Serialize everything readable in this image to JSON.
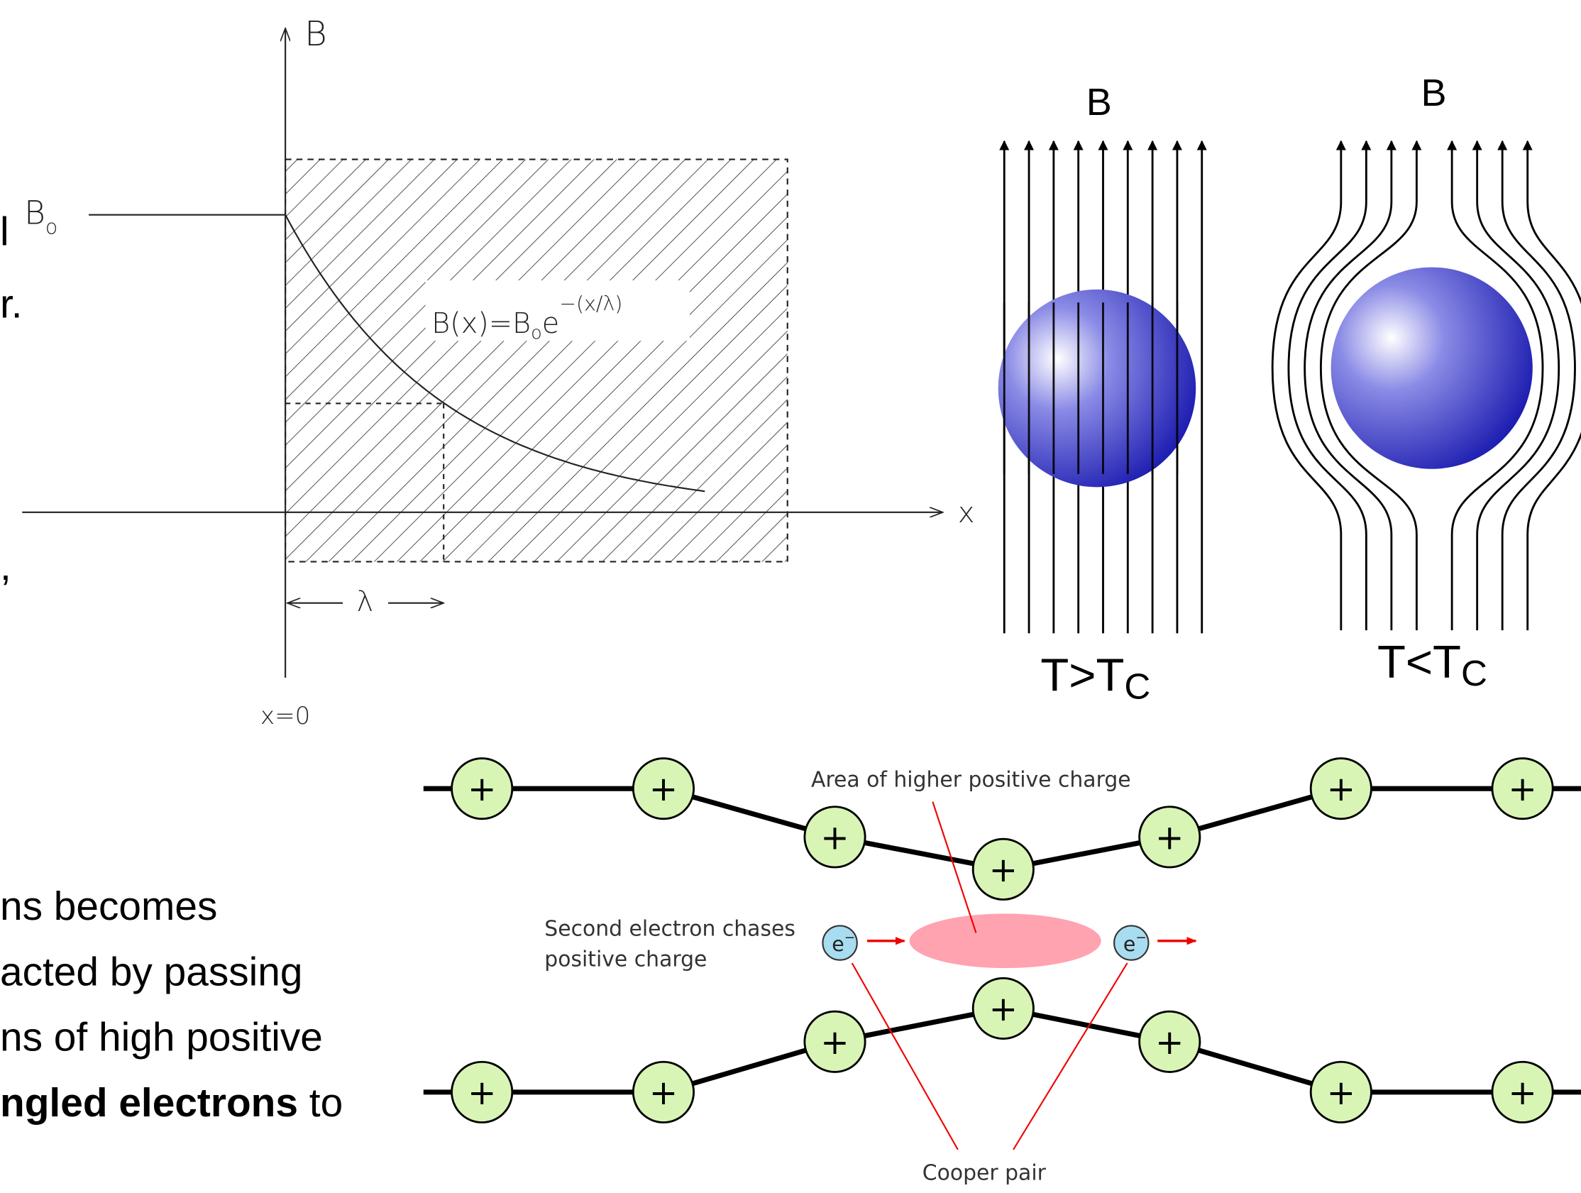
{
  "text_fragments": [
    "l",
    "r.",
    ",",
    "ns becomes",
    "acted by passing",
    "ns of high positive"
  ],
  "text_last_line": {
    "bold": "ngled electrons",
    "normal": "to"
  },
  "penetration_plot": {
    "y_axis_label": "B",
    "x_axis_label": "x",
    "b0_label": {
      "base": "B",
      "sub": "o"
    },
    "formula": {
      "main": "B(x)=B",
      "sub": "o",
      "base": "e",
      "sup": "−(x/λ)"
    },
    "lambda_label": "λ",
    "origin_label": "x=0"
  },
  "meissner": {
    "normal": {
      "field_label": "B",
      "temp_label": "T>T",
      "temp_subscript": "C"
    },
    "superconducting": {
      "field_label": "B",
      "temp_label": "T<T",
      "temp_subscript": "C"
    }
  },
  "cooper": {
    "top_label": "Area of higher positive charge",
    "side_label_lines": [
      "Second electron chases",
      "positive charge"
    ],
    "bottom_label": "Cooper pair",
    "electron_label": {
      "base": "e",
      "sup": "−"
    },
    "ion_label": "+"
  }
}
